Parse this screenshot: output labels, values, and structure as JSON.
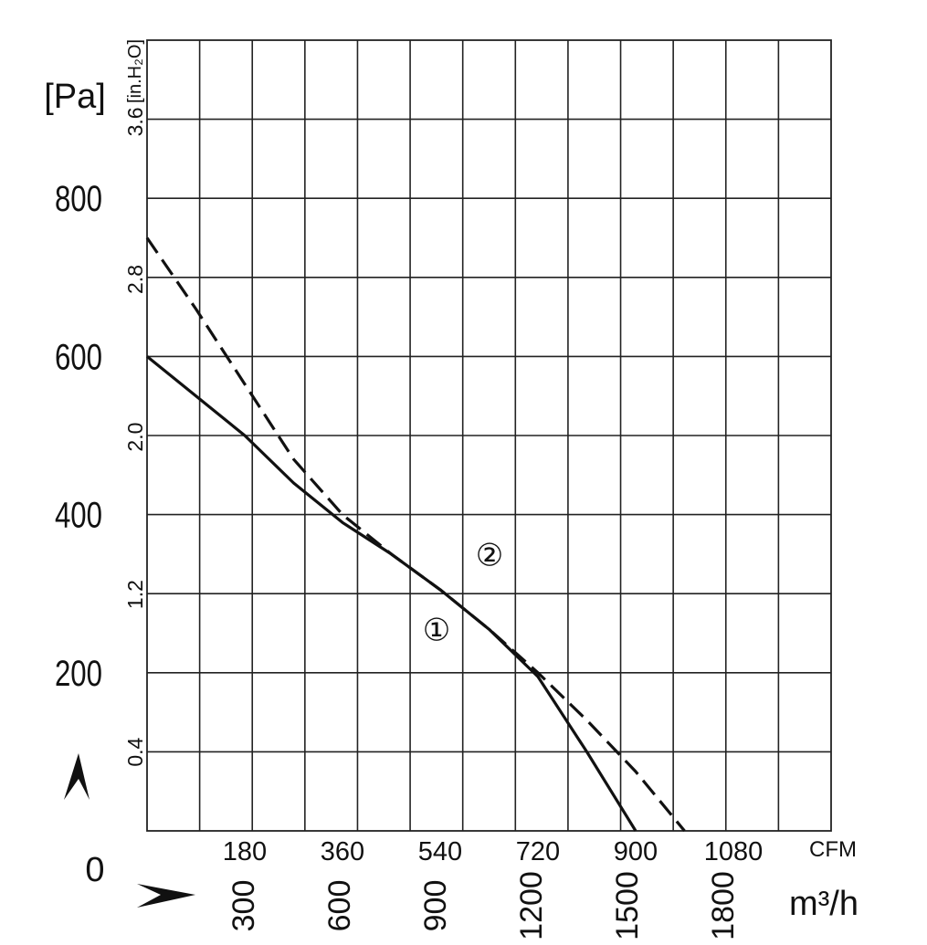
{
  "chart_data": {
    "type": "line",
    "y_unit": "[Pa]",
    "y2_unit": "[in.H₂O]",
    "x_unit": "CFM",
    "x2_unit": "m³/h",
    "origin_label": "0",
    "xlim_cfm": [
      0,
      1260
    ],
    "ylim_pa": [
      0,
      1000
    ],
    "y_ticks_pa": [
      "200",
      "400",
      "600",
      "800"
    ],
    "y_ticks_pa_values": [
      200,
      400,
      600,
      800
    ],
    "y_ticks_in": [
      "0.4",
      "1.2",
      "2.0",
      "2.8",
      "3.6"
    ],
    "y_ticks_in_values": [
      0.4,
      1.2,
      2.0,
      2.8,
      3.6
    ],
    "x_ticks_cfm": [
      "180",
      "360",
      "540",
      "720",
      "900",
      "1080"
    ],
    "x_ticks_cfm_values": [
      180,
      360,
      540,
      720,
      900,
      1080
    ],
    "x_ticks_m3h": [
      "300",
      "600",
      "900",
      "1200",
      "1500",
      "1800"
    ],
    "x_ticks_m3h_values": [
      300,
      600,
      900,
      1200,
      1500,
      1800
    ],
    "grid": true,
    "series": [
      {
        "name": "①",
        "style": "solid",
        "x": [
          0,
          180,
          270,
          360,
          450,
          540,
          630,
          720,
          810,
          900
        ],
        "y": [
          600,
          500,
          440,
          390,
          350,
          305,
          255,
          195,
          100,
          0
        ]
      },
      {
        "name": "②",
        "style": "dashed",
        "x": [
          0,
          90,
          180,
          270,
          360,
          450,
          540,
          630,
          720,
          810,
          900,
          990
        ],
        "y": [
          750,
          660,
          565,
          470,
          400,
          350,
          305,
          255,
          200,
          140,
          75,
          0
        ]
      }
    ],
    "colors": {
      "line": "#111111",
      "grid": "#222222"
    }
  }
}
